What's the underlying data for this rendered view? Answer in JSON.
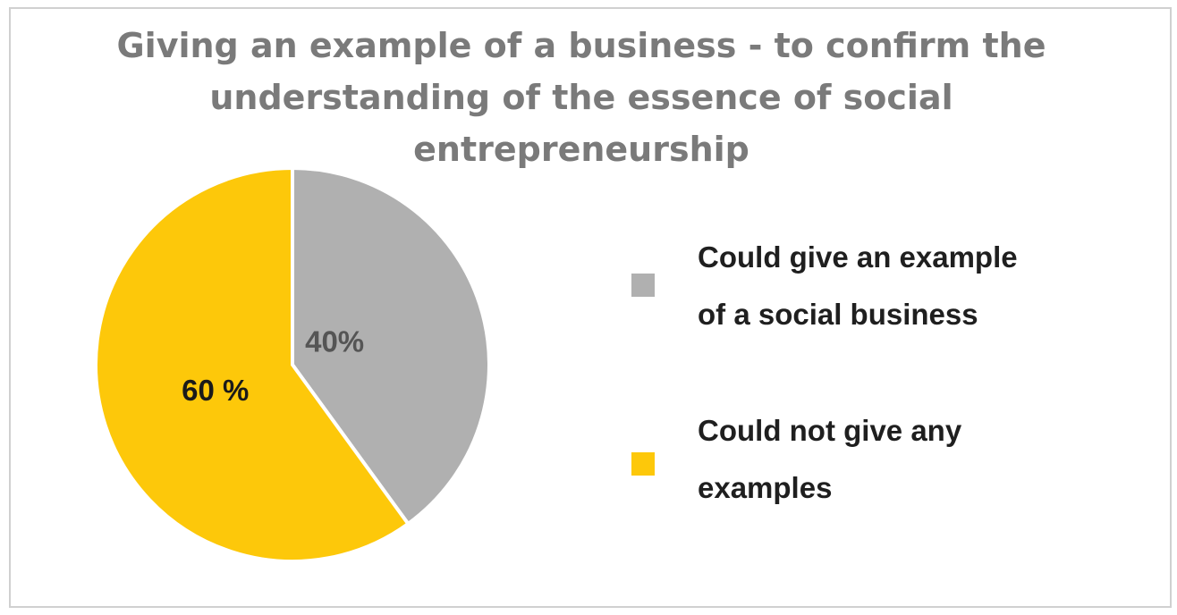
{
  "chart_data": {
    "type": "pie",
    "title_lines": [
      "Giving an example of a business - to confirm the",
      "understanding of the essence of social",
      "entrepreneurship"
    ],
    "slices": [
      {
        "label_lines": [
          "Could give an example",
          "of a social business"
        ],
        "value": 40,
        "data_label": "40%",
        "color": "#b0b0b0",
        "label_color": "#555555"
      },
      {
        "label_lines": [
          "Could not give any",
          "examples"
        ],
        "value": 60,
        "data_label": "60 %",
        "color": "#fdc80a",
        "label_color": "#1a1a1a"
      }
    ],
    "legend_position": "right",
    "start_angle": "12 o'clock",
    "direction": "clockwise"
  }
}
